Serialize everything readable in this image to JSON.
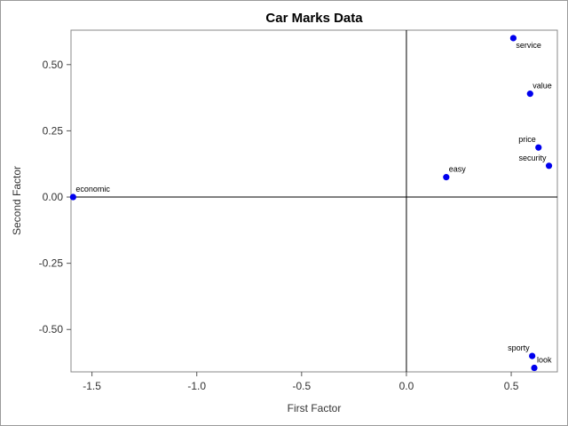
{
  "chart_data": {
    "type": "scatter",
    "title": "Car Marks Data",
    "xlabel": "First Factor",
    "ylabel": "Second Factor",
    "xlim": [
      -1.6,
      0.72
    ],
    "ylim": [
      -0.66,
      0.63
    ],
    "xticks": [
      -1.5,
      -1.0,
      -0.5,
      0.0,
      0.5
    ],
    "xtick_labels": [
      "-1.5",
      "-1.0",
      "-0.5",
      "0.0",
      "0.5"
    ],
    "yticks": [
      -0.5,
      -0.25,
      0.0,
      0.25,
      0.5
    ],
    "ytick_labels": [
      "-0.50",
      "-0.25",
      "0.00",
      "0.25",
      "0.50"
    ],
    "reference_lines": {
      "x": 0.0,
      "y": 0.0
    },
    "grid": false,
    "marker_color": "#0000ee",
    "points": [
      {
        "label": "service",
        "x": 0.51,
        "y": 0.6,
        "label_pos": "below-right"
      },
      {
        "label": "value",
        "x": 0.59,
        "y": 0.39,
        "label_pos": "above-right"
      },
      {
        "label": "price",
        "x": 0.63,
        "y": 0.187,
        "label_pos": "above-left"
      },
      {
        "label": "security",
        "x": 0.68,
        "y": 0.118,
        "label_pos": "above-left"
      },
      {
        "label": "easy",
        "x": 0.19,
        "y": 0.075,
        "label_pos": "above-right"
      },
      {
        "label": "economic",
        "x": -1.59,
        "y": 0.0,
        "label_pos": "above-right"
      },
      {
        "label": "sporty",
        "x": 0.6,
        "y": -0.6,
        "label_pos": "above-left"
      },
      {
        "label": "look",
        "x": 0.61,
        "y": -0.645,
        "label_pos": "above-right"
      }
    ]
  }
}
